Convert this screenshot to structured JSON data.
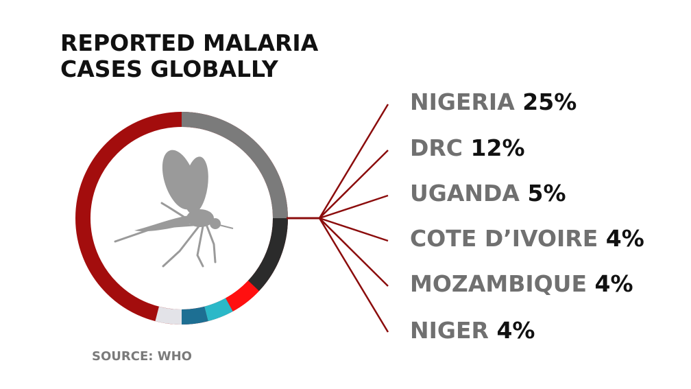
{
  "title_lines": [
    "REPORTED MALARIA",
    "CASES GLOBALLY"
  ],
  "source": "SOURCE: WHO",
  "colors": {
    "rest": "#a30d0d",
    "connector": "#8b0c0c",
    "country_text": "#707070",
    "pct_text": "#111111",
    "mosquito": "#9a9a9a"
  },
  "chart_data": {
    "type": "pie",
    "title": "REPORTED MALARIA CASES GLOBALLY",
    "slices": [
      {
        "name": "NIGERIA",
        "value": 25,
        "label": "25%",
        "color": "#7b7b7b"
      },
      {
        "name": "DRC",
        "value": 12,
        "label": "12%",
        "color": "#2b2b2b"
      },
      {
        "name": "UGANDA",
        "value": 5,
        "label": "5%",
        "color": "#ff1010"
      },
      {
        "name": "COTE D’IVOIRE",
        "value": 4,
        "label": "4%",
        "color": "#2bb8c8"
      },
      {
        "name": "MOZAMBIQUE",
        "value": 4,
        "label": "4%",
        "color": "#1d6f93"
      },
      {
        "name": "NIGER",
        "value": 4,
        "label": "4%",
        "color": "#e3e3e8"
      }
    ],
    "annotations": [
      "SOURCE: WHO"
    ]
  },
  "icons": [
    "mosquito-icon"
  ]
}
